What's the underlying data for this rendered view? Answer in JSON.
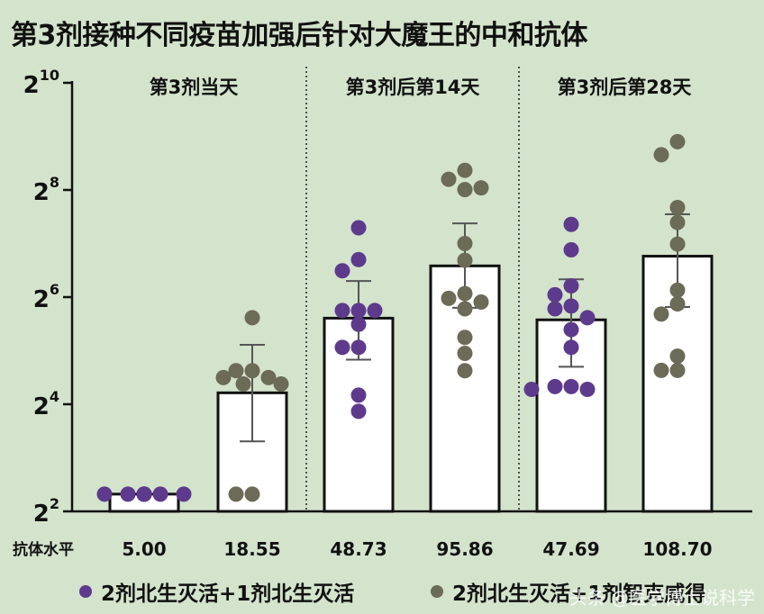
{
  "title": "第3剂接种不同疫苗加强后针对大魔王的中和抗体",
  "legend": [
    {
      "label": "2剂北生灭活+1剂北生灭活",
      "color": "#5e3a8c"
    },
    {
      "label": "2剂北生灭活+1剂智克威得",
      "color": "#6b6b58"
    }
  ],
  "watermark": "头条 @医学博士说科学",
  "row_label": "抗体水平",
  "colors": {
    "background": "#d3e3cc",
    "bar_fill": "#ffffff",
    "bar_stroke": "#111111",
    "purple": "#5e3a8c",
    "gray": "#6b6b58"
  },
  "chart_data": {
    "type": "bar",
    "y_scale": "log2",
    "ylim_exponent": [
      2,
      10
    ],
    "y_ticks": [
      {
        "base": "2",
        "exp": "2"
      },
      {
        "base": "2",
        "exp": "4"
      },
      {
        "base": "2",
        "exp": "6"
      },
      {
        "base": "2",
        "exp": "8"
      },
      {
        "base": "2",
        "exp": "10"
      }
    ],
    "groups": [
      "第3剂当天",
      "第3剂后第14天",
      "第3剂后第28天"
    ],
    "categories": [
      "5.00",
      "18.55",
      "48.73",
      "95.86",
      "47.69",
      "108.70"
    ],
    "bars": [
      {
        "group": 0,
        "series": 0,
        "value": 5.0,
        "error": [
          5.0,
          5.0
        ],
        "points": [
          5,
          5,
          5,
          5,
          5,
          5,
          5,
          5,
          5,
          5
        ]
      },
      {
        "group": 0,
        "series": 1,
        "value": 18.55,
        "error": [
          9.9,
          34.5
        ],
        "points": [
          49,
          24.7,
          24.7,
          22.6,
          22.6,
          20.8,
          20.8,
          5,
          5
        ]
      },
      {
        "group": 1,
        "series": 0,
        "value": 48.73,
        "error": [
          28.5,
          78.8
        ],
        "points": [
          157,
          104,
          90,
          53.8,
          53.8,
          53.8,
          45,
          33.4,
          33.4,
          18,
          14.6
        ]
      },
      {
        "group": 1,
        "series": 1,
        "value": 95.86,
        "error": [
          55.7,
          166
        ],
        "points": [
          330,
          294,
          257,
          263,
          128,
          103,
          67,
          63,
          60,
          55,
          38,
          30.9,
          24.7
        ]
      },
      {
        "group": 2,
        "series": 0,
        "value": 47.69,
        "error": [
          26,
          80.6
        ],
        "points": [
          164,
          118,
          74,
          66,
          57,
          55,
          49,
          42,
          33.4,
          20.1,
          20.1,
          19.4,
          19.4
        ]
      },
      {
        "group": 2,
        "series": 1,
        "value": 108.7,
        "error": [
          56.3,
          187
        ],
        "points": [
          478,
          404,
          204,
          168,
          127,
          70,
          58.6,
          51.4,
          29.8,
          24.8,
          24.8
        ]
      }
    ]
  }
}
